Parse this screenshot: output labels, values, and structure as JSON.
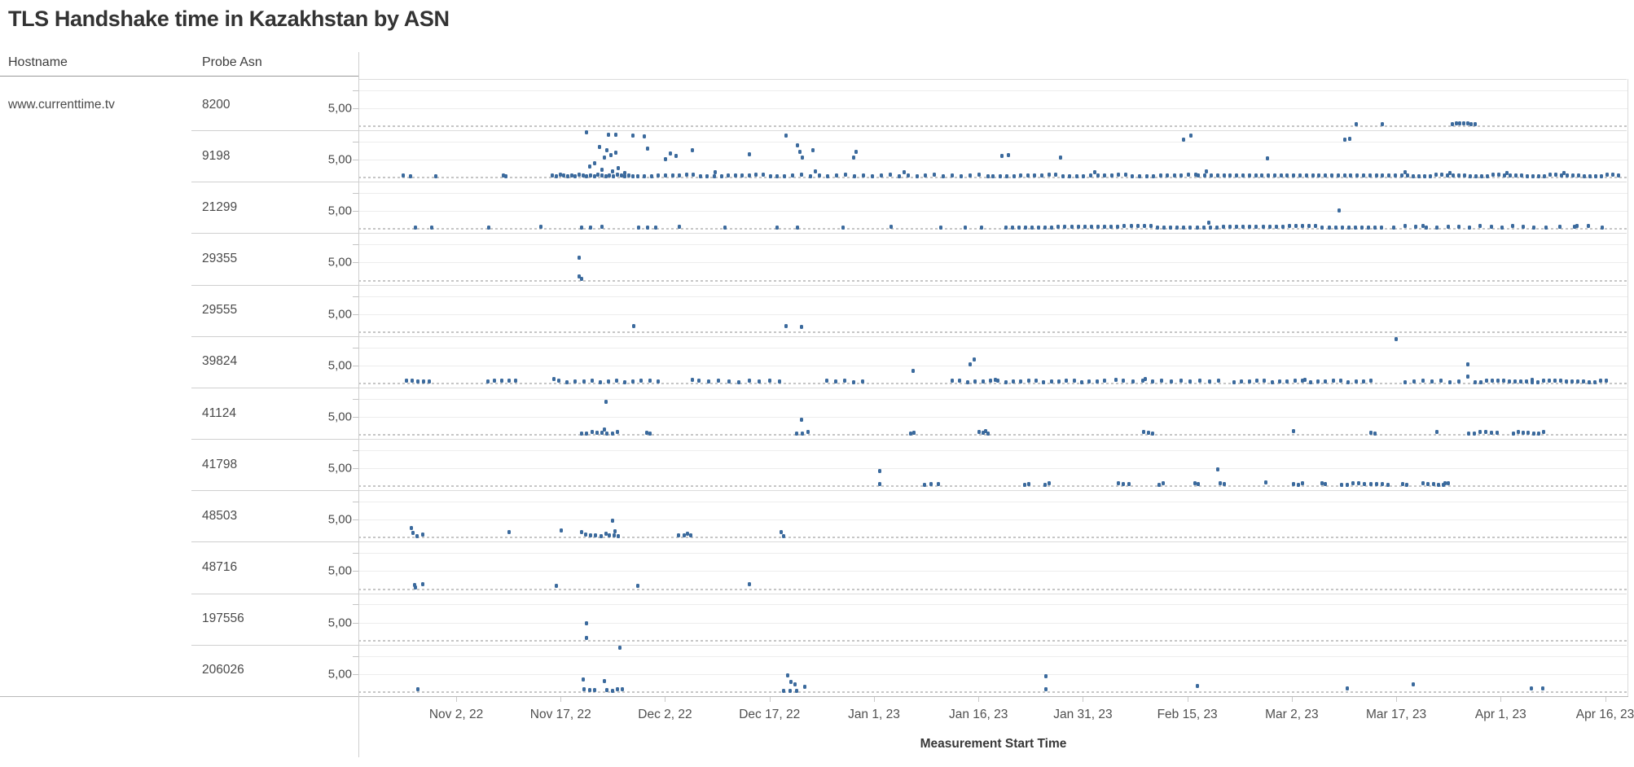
{
  "title": "TLS Handshake time in Kazakhstan by ASN",
  "table": {
    "hostname_header": "Hostname",
    "asn_header": "Probe Asn",
    "hostname": "www.currenttime.tv"
  },
  "colors": {
    "dot": "#3b6a9d",
    "grid": "#ededed",
    "zero_line": "#c6c6c6",
    "title_text": "#333333"
  },
  "chart_data": {
    "type": "scatter",
    "title": "TLS Handshake time in Kazakhstan by ASN",
    "xlabel": "Measurement Start Time",
    "ylabel": "",
    "hostname": "www.currenttime.tv",
    "y_tick_label": "5,00",
    "ylim": [
      0,
      13
    ],
    "grid": true,
    "x_ticks": [
      "Nov 2, 22",
      "Nov 17, 22",
      "Dec 2, 22",
      "Dec 17, 22",
      "Jan 1, 23",
      "Jan 16, 23",
      "Jan 31, 23",
      "Feb 15, 23",
      "Mar 2, 23",
      "Mar 17, 23",
      "Apr 1, 23",
      "Apr 16, 23"
    ],
    "x_unit": "percent_of_plot_width",
    "y_unit": "seconds",
    "series": [
      {
        "asn": "8200",
        "points": [
          [
            78.6,
            0.5
          ],
          [
            80.7,
            0.5
          ],
          [
            86.2,
            0.7
          ],
          [
            86.5,
            0.9
          ],
          [
            86.8,
            0.8
          ],
          [
            87.1,
            0.9
          ],
          [
            87.4,
            0.8
          ],
          [
            87.7,
            0.7
          ],
          [
            88.0,
            0.6
          ]
        ],
        "baseline_runs": []
      },
      {
        "asn": "9198",
        "points": [
          [
            3.5,
            0.6
          ],
          [
            4.1,
            0.4
          ],
          [
            6.1,
            0.5
          ],
          [
            11.4,
            0.7
          ],
          [
            11.6,
            0.3
          ],
          [
            18.0,
            12.5
          ],
          [
            19.7,
            12.0
          ],
          [
            20.3,
            12.0
          ],
          [
            21.6,
            11.6
          ],
          [
            22.5,
            11.4
          ],
          [
            19.0,
            8.6
          ],
          [
            19.6,
            7.6
          ],
          [
            20.3,
            7.0
          ],
          [
            19.9,
            6.3
          ],
          [
            19.4,
            5.6
          ],
          [
            18.6,
            4.1
          ],
          [
            18.2,
            3.1
          ],
          [
            20.5,
            2.6
          ],
          [
            19.2,
            2.1
          ],
          [
            20.0,
            1.7
          ],
          [
            21.0,
            1.4
          ],
          [
            22.8,
            8.0
          ],
          [
            24.2,
            5.2
          ],
          [
            24.6,
            6.8
          ],
          [
            25.0,
            6.1
          ],
          [
            26.3,
            7.6
          ],
          [
            28.1,
            1.5
          ],
          [
            30.8,
            6.6
          ],
          [
            33.7,
            11.6
          ],
          [
            34.6,
            9.1
          ],
          [
            34.8,
            7.1
          ],
          [
            35.0,
            5.6
          ],
          [
            35.8,
            7.6
          ],
          [
            36.0,
            1.8
          ],
          [
            39.0,
            5.6
          ],
          [
            39.2,
            7.1
          ],
          [
            43.0,
            1.5
          ],
          [
            50.7,
            6.1
          ],
          [
            51.2,
            6.3
          ],
          [
            55.3,
            5.6
          ],
          [
            58.0,
            1.6
          ],
          [
            65.0,
            10.6
          ],
          [
            65.6,
            11.6
          ],
          [
            66.8,
            1.8
          ],
          [
            71.6,
            5.3
          ],
          [
            77.7,
            10.6
          ],
          [
            78.1,
            10.8
          ],
          [
            82.5,
            1.5
          ],
          [
            86.0,
            1.3
          ],
          [
            90.5,
            1.4
          ],
          [
            95.0,
            1.2
          ]
        ],
        "baseline_runs": [
          [
            15.3,
            21.6,
            0.3
          ],
          [
            22.0,
            34.0,
            0.55
          ],
          [
            34.2,
            49.8,
            0.7
          ],
          [
            50.0,
            66.0,
            0.55
          ],
          [
            66.2,
            82.0,
            0.5
          ],
          [
            82.2,
            99.3,
            0.45
          ]
        ]
      },
      {
        "asn": "21299",
        "points": [
          [
            4.5,
            0.5
          ],
          [
            5.8,
            0.5
          ],
          [
            10.3,
            0.5
          ],
          [
            14.4,
            0.6
          ],
          [
            17.6,
            0.5
          ],
          [
            18.3,
            0.5
          ],
          [
            19.2,
            0.6
          ],
          [
            22.1,
            0.5
          ],
          [
            22.8,
            0.5
          ],
          [
            23.4,
            0.5
          ],
          [
            25.3,
            0.6
          ],
          [
            28.9,
            0.5
          ],
          [
            33.0,
            0.5
          ],
          [
            34.6,
            0.5
          ],
          [
            38.2,
            0.5
          ],
          [
            42.0,
            0.6
          ],
          [
            45.9,
            0.5
          ],
          [
            47.8,
            0.5
          ],
          [
            49.1,
            0.5
          ],
          [
            67.0,
            1.7
          ],
          [
            77.3,
            5.1
          ],
          [
            83.9,
            1.0
          ],
          [
            96.0,
            0.9
          ]
        ],
        "baseline_runs": [
          [
            51.0,
            81.0,
            0.52
          ],
          [
            81.6,
            93.0,
            0.85
          ],
          [
            93.6,
            98.4,
            1.1
          ]
        ]
      },
      {
        "asn": "29355",
        "points": [
          [
            17.4,
            6.3
          ],
          [
            17.4,
            1.1
          ],
          [
            17.6,
            0.4
          ]
        ],
        "baseline_runs": []
      },
      {
        "asn": "29555",
        "points": [
          [
            21.7,
            1.6
          ],
          [
            33.7,
            1.7
          ],
          [
            34.9,
            1.5
          ]
        ],
        "baseline_runs": []
      },
      {
        "asn": "39824",
        "points": [
          [
            43.7,
            3.5
          ],
          [
            48.2,
            5.3
          ],
          [
            48.5,
            6.7
          ],
          [
            81.8,
            12.3
          ],
          [
            87.4,
            5.2
          ],
          [
            87.4,
            1.9
          ],
          [
            15.4,
            1.2
          ],
          [
            26.3,
            1.0
          ],
          [
            50.2,
            0.9
          ],
          [
            59.7,
            1.0
          ],
          [
            62.0,
            1.3
          ],
          [
            74.6,
            0.9
          ],
          [
            92.5,
            1.1
          ]
        ],
        "baseline_runs": [
          [
            3.8,
            5.7,
            0.45
          ],
          [
            10.2,
            12.5,
            0.55
          ],
          [
            15.8,
            24.0,
            0.65
          ],
          [
            26.8,
            33.5,
            0.8
          ],
          [
            36.9,
            40.0,
            0.7
          ],
          [
            46.8,
            58.9,
            0.6
          ],
          [
            60.3,
            68.0,
            0.75
          ],
          [
            69.0,
            80.2,
            0.6
          ],
          [
            82.5,
            86.8,
            0.7
          ],
          [
            88.0,
            98.5,
            0.45
          ]
        ]
      },
      {
        "asn": "41124",
        "points": [
          [
            19.5,
            9.1
          ],
          [
            19.4,
            1.4
          ],
          [
            34.9,
            4.1
          ],
          [
            49.4,
            1.0
          ],
          [
            73.7,
            1.0
          ],
          [
            85.0,
            0.9
          ]
        ],
        "baseline_runs": [
          [
            17.6,
            20.4,
            0.4
          ],
          [
            22.7,
            23.0,
            0.3
          ],
          [
            34.5,
            35.4,
            0.45
          ],
          [
            43.5,
            43.8,
            0.3
          ],
          [
            48.9,
            49.6,
            0.35
          ],
          [
            61.9,
            62.6,
            0.35
          ],
          [
            79.8,
            80.1,
            0.3
          ],
          [
            87.5,
            89.8,
            0.45
          ],
          [
            91.0,
            93.6,
            0.4
          ]
        ]
      },
      {
        "asn": "41798",
        "points": [
          [
            41.1,
            4.3
          ],
          [
            41.1,
            0.7
          ],
          [
            67.7,
            4.7
          ],
          [
            71.5,
            1.0
          ],
          [
            85.6,
            0.9
          ]
        ],
        "baseline_runs": [
          [
            44.6,
            45.8,
            0.55
          ],
          [
            52.5,
            52.8,
            0.3
          ],
          [
            54.1,
            54.4,
            0.3
          ],
          [
            59.9,
            60.7,
            0.4
          ],
          [
            63.1,
            63.4,
            0.3
          ],
          [
            65.9,
            66.2,
            0.3
          ],
          [
            67.9,
            68.4,
            0.3
          ],
          [
            73.7,
            74.4,
            0.35
          ],
          [
            75.9,
            76.2,
            0.3
          ],
          [
            77.5,
            81.2,
            0.45
          ],
          [
            82.3,
            82.6,
            0.3
          ],
          [
            83.9,
            86.0,
            0.4
          ]
        ]
      },
      {
        "asn": "48503",
        "points": [
          [
            4.2,
            2.7
          ],
          [
            4.3,
            1.3
          ],
          [
            4.6,
            0.5
          ],
          [
            5.1,
            0.9
          ],
          [
            11.9,
            1.5
          ],
          [
            16.0,
            2.0
          ],
          [
            17.6,
            1.5
          ],
          [
            19.5,
            1.2
          ],
          [
            20.0,
            4.7
          ],
          [
            20.2,
            1.7
          ],
          [
            25.9,
            1.1
          ],
          [
            33.3,
            1.6
          ],
          [
            33.5,
            0.5
          ]
        ],
        "baseline_runs": [
          [
            17.9,
            19.1,
            0.4
          ],
          [
            19.8,
            20.6,
            0.35
          ],
          [
            25.2,
            26.4,
            0.5
          ]
        ]
      },
      {
        "asn": "48716",
        "points": [
          [
            4.4,
            1.2
          ],
          [
            4.5,
            0.5
          ],
          [
            5.1,
            1.3
          ],
          [
            15.6,
            0.9
          ],
          [
            22.0,
            0.9
          ],
          [
            30.8,
            1.4
          ]
        ],
        "baseline_runs": []
      },
      {
        "asn": "197556",
        "points": [
          [
            18.0,
            4.7
          ],
          [
            18.0,
            0.7
          ]
        ],
        "baseline_runs": []
      },
      {
        "asn": "206026",
        "points": [
          [
            4.7,
            0.7
          ],
          [
            17.7,
            3.5
          ],
          [
            19.4,
            3.1
          ],
          [
            20.6,
            12.4
          ],
          [
            33.8,
            4.7
          ],
          [
            34.1,
            2.7
          ],
          [
            34.4,
            2.1
          ],
          [
            35.2,
            1.5
          ],
          [
            54.2,
            4.4
          ],
          [
            54.2,
            0.7
          ],
          [
            66.1,
            1.6
          ],
          [
            77.9,
            0.9
          ],
          [
            83.1,
            2.0
          ],
          [
            92.4,
            1.0
          ],
          [
            93.3,
            0.9
          ]
        ],
        "baseline_runs": [
          [
            17.8,
            18.6,
            0.4
          ],
          [
            19.6,
            20.8,
            0.4
          ],
          [
            33.5,
            34.9,
            0.5
          ]
        ]
      }
    ]
  }
}
